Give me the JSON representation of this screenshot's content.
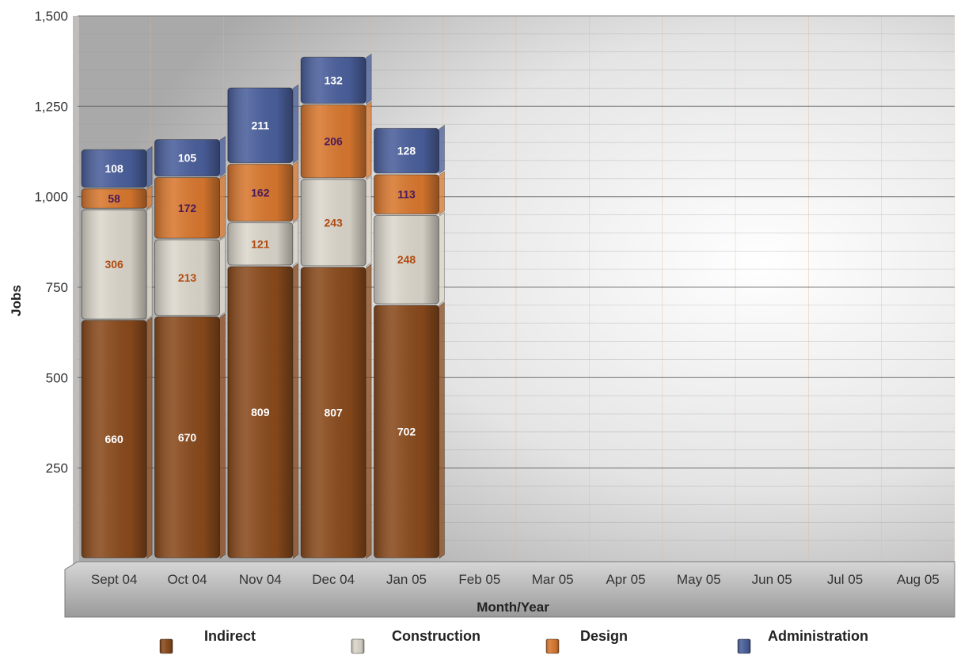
{
  "chart_data": {
    "type": "bar",
    "stacked": true,
    "categories": [
      "Sept 04",
      "Oct 04",
      "Nov 04",
      "Dec 04",
      "Jan 05",
      "Feb 05",
      "Mar 05",
      "Apr 05",
      "May 05",
      "Jun 05",
      "Jul 05",
      "Aug 05"
    ],
    "series": [
      {
        "name": "Indirect",
        "color": "#8a4a1c",
        "label_color": "#ffffff",
        "values": [
          660,
          670,
          809,
          807,
          702,
          null,
          null,
          null,
          null,
          null,
          null,
          null
        ]
      },
      {
        "name": "Construction",
        "color": "#dcd7cc",
        "label_color": "#b04a10",
        "values": [
          306,
          213,
          121,
          243,
          248,
          null,
          null,
          null,
          null,
          null,
          null,
          null
        ]
      },
      {
        "name": "Design",
        "color": "#d9782f",
        "label_color": "#4a1a5a",
        "values": [
          58,
          172,
          162,
          206,
          113,
          null,
          null,
          null,
          null,
          null,
          null,
          null
        ]
      },
      {
        "name": "Administration",
        "color": "#4a5f9c",
        "label_color": "#ffffff",
        "values": [
          108,
          105,
          211,
          132,
          128,
          null,
          null,
          null,
          null,
          null,
          null,
          null
        ]
      }
    ],
    "xlabel": "Month/Year",
    "ylabel": "Jobs",
    "ylim": [
      0,
      1500
    ],
    "yticks": [
      "250",
      "500",
      "750",
      "1,000",
      "1,250",
      "1,500"
    ],
    "ytick_values": [
      250,
      500,
      750,
      1000,
      1250,
      1500
    ],
    "grid": true,
    "legend_position": "bottom"
  }
}
